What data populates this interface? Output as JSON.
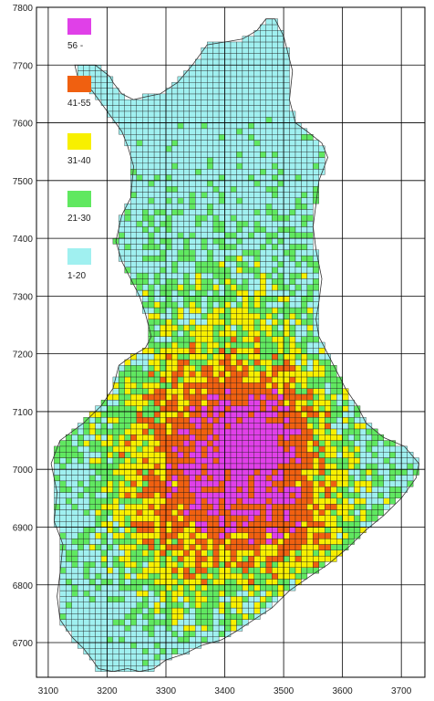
{
  "map": {
    "x_axis_ticks": [
      "3100",
      "3200",
      "3300",
      "3400",
      "3500",
      "3600",
      "3700"
    ],
    "y_axis_ticks": [
      "7800",
      "7700",
      "7600",
      "7500",
      "7400",
      "7300",
      "7200",
      "7100",
      "7000",
      "6900",
      "6800",
      "6700"
    ],
    "x_range": [
      3080,
      3740
    ],
    "y_range": [
      6640,
      7800
    ],
    "cell_size": 10,
    "grid_lines": true
  },
  "legend": {
    "items": [
      {
        "label": "56 -",
        "color": "#e040e8"
      },
      {
        "label": "41-55",
        "color": "#f06010"
      },
      {
        "label": "31-40",
        "color": "#f8f000"
      },
      {
        "label": "21-30",
        "color": "#60e860"
      },
      {
        "label": "1-20",
        "color": "#a0f0f0"
      }
    ]
  }
}
